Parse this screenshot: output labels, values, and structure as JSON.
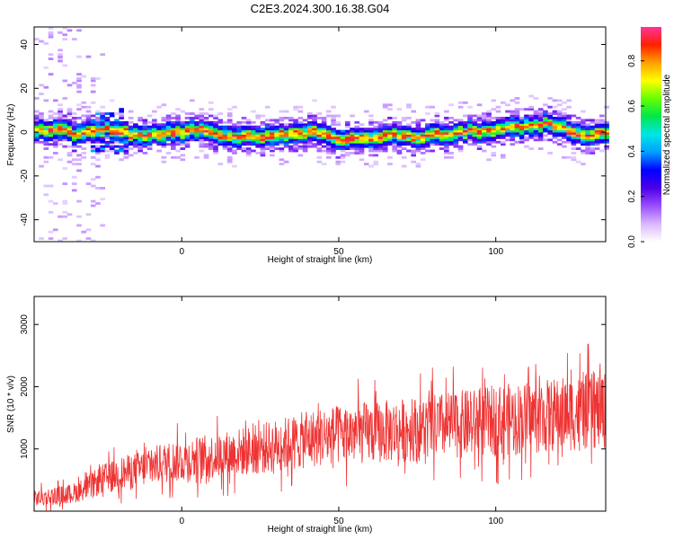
{
  "title": "C2E3.2024.300.16.38.G04",
  "chart_data": [
    {
      "type": "heatmap",
      "xlabel": "Height of straight line (km)",
      "ylabel": "Frequency (Hz)",
      "xlim": [
        -47,
        135
      ],
      "ylim": [
        -50,
        48
      ],
      "xticks": [
        0,
        50,
        100
      ],
      "xtick_labels": [
        "0",
        "50",
        "100"
      ],
      "yticks": [
        -40,
        -20,
        0,
        20,
        40
      ],
      "ytick_labels": [
        "-40",
        "-20",
        "0",
        "20",
        "40"
      ],
      "colorbar": {
        "label": "Normalized spectral amplitude",
        "range": [
          0,
          0.95
        ],
        "ticks": [
          0,
          0.2,
          0.4,
          0.6,
          0.8
        ],
        "tick_labels": [
          "0.0",
          "0.2",
          "0.4",
          "0.6",
          "0.8"
        ],
        "colors": [
          "#ffffff",
          "#d9b8ff",
          "#9b4dff",
          "#4a00e6",
          "#0000ff",
          "#00a0ff",
          "#00e6e6",
          "#00e64d",
          "#66ff00",
          "#ffff00",
          "#ffa000",
          "#ff2000",
          "#ff3399"
        ]
      },
      "ridge": [
        [
          -45,
          0
        ],
        [
          -40,
          1
        ],
        [
          -35,
          -1
        ],
        [
          -30,
          0
        ],
        [
          -25,
          1
        ],
        [
          -20,
          0
        ],
        [
          -15,
          -2
        ],
        [
          -10,
          -2
        ],
        [
          -5,
          -1
        ],
        [
          0,
          0
        ],
        [
          5,
          1
        ],
        [
          10,
          -2
        ],
        [
          15,
          -2
        ],
        [
          20,
          -2
        ],
        [
          25,
          -3
        ],
        [
          30,
          -1
        ],
        [
          35,
          -2
        ],
        [
          40,
          0
        ],
        [
          45,
          -2
        ],
        [
          50,
          -4
        ],
        [
          55,
          -3
        ],
        [
          60,
          -3
        ],
        [
          65,
          -2
        ],
        [
          70,
          -2
        ],
        [
          75,
          -3
        ],
        [
          80,
          -1
        ],
        [
          85,
          -1
        ],
        [
          90,
          0
        ],
        [
          95,
          0
        ],
        [
          100,
          1
        ],
        [
          105,
          2
        ],
        [
          110,
          2
        ],
        [
          115,
          3
        ],
        [
          120,
          2
        ],
        [
          125,
          -1
        ],
        [
          130,
          -2
        ],
        [
          135,
          0
        ]
      ]
    },
    {
      "type": "line",
      "xlabel": "Height of straight line (km)",
      "ylabel": "SNR (10 * v/v)",
      "xlim": [
        -47,
        135
      ],
      "ylim": [
        0,
        3450
      ],
      "xticks": [
        0,
        50,
        100
      ],
      "xtick_labels": [
        "0",
        "50",
        "100"
      ],
      "yticks": [
        1000,
        2000,
        3000
      ],
      "ytick_labels": [
        "1000",
        "2000",
        "3000"
      ],
      "series": [
        {
          "color": "#ee3333",
          "x": [
            -47,
            -40,
            -35,
            -30,
            -25,
            -20,
            -15,
            -10,
            -5,
            0,
            5,
            10,
            15,
            20,
            25,
            30,
            35,
            40,
            45,
            50,
            55,
            60,
            65,
            70,
            75,
            80,
            85,
            90,
            95,
            100,
            105,
            110,
            115,
            120,
            125,
            130,
            135
          ],
          "y": [
            200,
            250,
            280,
            380,
            520,
            600,
            650,
            720,
            780,
            820,
            850,
            880,
            920,
            960,
            1000,
            1050,
            1100,
            1150,
            1200,
            1220,
            1250,
            1260,
            1280,
            1300,
            1320,
            1350,
            1380,
            1400,
            1420,
            1460,
            1480,
            1500,
            1520,
            1550,
            1580,
            1600,
            1620
          ]
        }
      ]
    }
  ]
}
